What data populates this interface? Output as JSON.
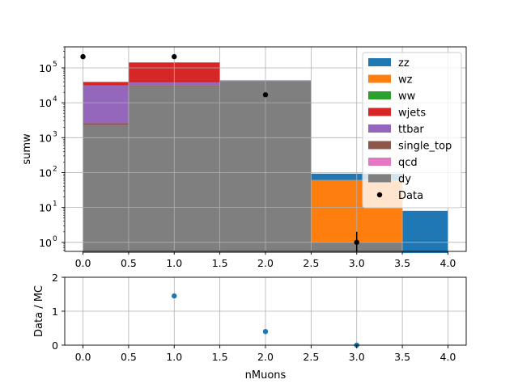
{
  "chart_data": [
    {
      "type": "bar",
      "subtype": "stacked-histogram",
      "xlabel": "",
      "ylabel": "sumw",
      "yscale": "log",
      "xlim": [
        -0.2,
        4.2
      ],
      "ylim": [
        0.55,
        400000
      ],
      "grid": true,
      "legend_position": "top-right",
      "x_ticks": [
        "0.0",
        "0.5",
        "1.0",
        "1.5",
        "2.0",
        "2.5",
        "3.0",
        "3.5",
        "4.0"
      ],
      "y_ticks": [
        {
          "value": 1,
          "base": "10",
          "exp": "0"
        },
        {
          "value": 10,
          "base": "10",
          "exp": "1"
        },
        {
          "value": 100,
          "base": "10",
          "exp": "2"
        },
        {
          "value": 1000,
          "base": "10",
          "exp": "3"
        },
        {
          "value": 10000,
          "base": "10",
          "exp": "4"
        },
        {
          "value": 100000,
          "base": "10",
          "exp": "5"
        }
      ],
      "bins": [
        [
          0,
          0.5
        ],
        [
          0.5,
          1.5
        ],
        [
          1.5,
          2.5
        ],
        [
          2.5,
          3.5
        ],
        [
          3.5,
          4.0
        ]
      ],
      "series": [
        {
          "name": "dy",
          "color": "#7f7f7f",
          "values": [
            2300,
            30000,
            42000,
            1.0,
            0
          ]
        },
        {
          "name": "qcd",
          "color": "#e377c2",
          "values": [
            0,
            0,
            0,
            0,
            0
          ]
        },
        {
          "name": "single_top",
          "color": "#8c564b",
          "values": [
            300,
            1500,
            0,
            0,
            0
          ]
        },
        {
          "name": "ttbar",
          "color": "#9467bd",
          "values": [
            29000,
            6500,
            1500,
            0,
            0
          ]
        },
        {
          "name": "wjets",
          "color": "#d62728",
          "values": [
            8000,
            105000,
            0,
            0,
            0
          ]
        },
        {
          "name": "ww",
          "color": "#2ca02c",
          "values": [
            0,
            0,
            0,
            0,
            0
          ]
        },
        {
          "name": "wz",
          "color": "#ff7f0e",
          "values": [
            0,
            0,
            800,
            60,
            0
          ]
        },
        {
          "name": "zz",
          "color": "#1f77b4",
          "values": [
            0,
            0,
            0,
            32,
            8
          ]
        }
      ],
      "data_points": {
        "name": "Data",
        "x": [
          0,
          1,
          2,
          3
        ],
        "y": [
          210000,
          210000,
          17000,
          1
        ],
        "yerr": [
          [
            0,
            0
          ],
          [
            0,
            0
          ],
          [
            0,
            0
          ],
          [
            0.45,
            1
          ]
        ]
      }
    },
    {
      "type": "scatter",
      "xlabel": "nMuons",
      "ylabel": "Data / MC",
      "xlim": [
        -0.2,
        4.2
      ],
      "ylim": [
        0,
        2
      ],
      "grid": true,
      "x_ticks": [
        "0.0",
        "0.5",
        "1.0",
        "1.5",
        "2.0",
        "2.5",
        "3.0",
        "3.5",
        "4.0"
      ],
      "y_ticks": [
        "0",
        "1",
        "2"
      ],
      "color": "#1f77b4",
      "x": [
        1,
        2,
        3
      ],
      "y": [
        1.45,
        0.4,
        0.0
      ]
    }
  ]
}
